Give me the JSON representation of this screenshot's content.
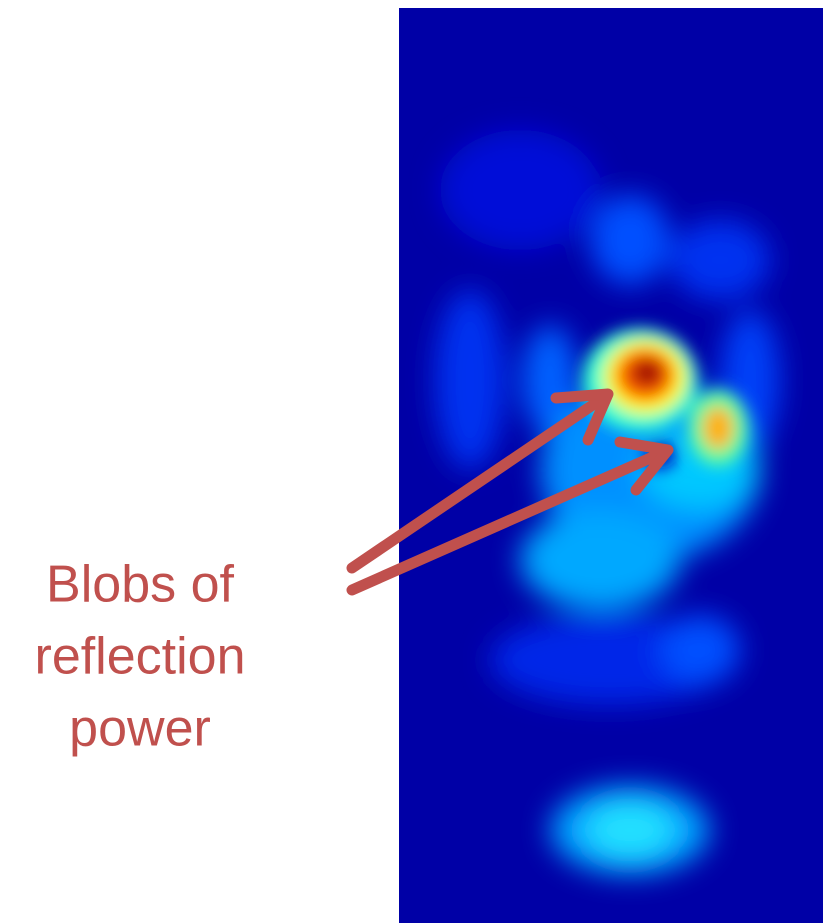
{
  "annotation": {
    "lines": [
      "Blobs of",
      "reflection",
      "power"
    ]
  }
}
